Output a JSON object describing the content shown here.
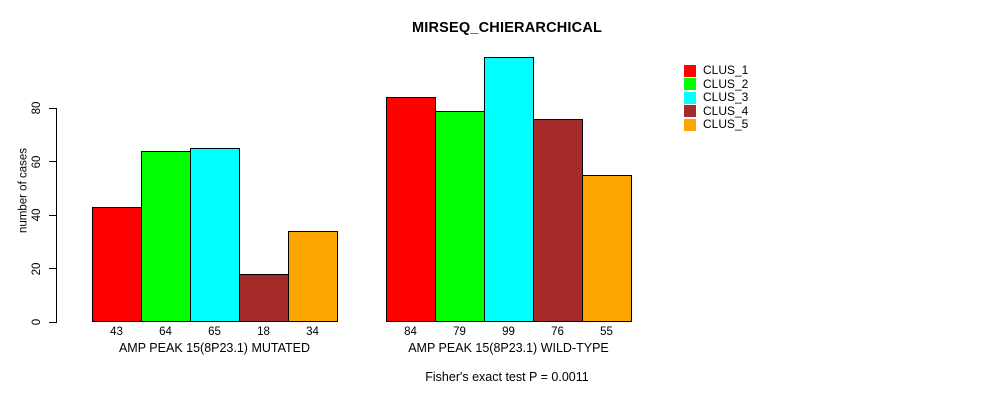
{
  "title": "MIRSEQ_CHIERARCHICAL",
  "footnote": "Fisher's exact test P = 0.0011",
  "chart_data": {
    "type": "bar",
    "grouped": true,
    "title": "MIRSEQ_CHIERARCHICAL",
    "subtitle": "Fisher's exact test P = 0.0011",
    "categories": [
      "AMP PEAK 15(8P23.1) MUTATED",
      "AMP PEAK 15(8P23.1) WILD-TYPE"
    ],
    "series": [
      {
        "name": "CLUS_1",
        "color": "#FF0000",
        "values": [
          43,
          84
        ]
      },
      {
        "name": "CLUS_2",
        "color": "#00FF00",
        "values": [
          64,
          79
        ]
      },
      {
        "name": "CLUS_3",
        "color": "#00FFFF",
        "values": [
          65,
          99
        ]
      },
      {
        "name": "CLUS_4",
        "color": "#A52A2A",
        "values": [
          18,
          76
        ]
      },
      {
        "name": "CLUS_5",
        "color": "#FFA500",
        "values": [
          34,
          55
        ]
      }
    ],
    "xlabel": "",
    "ylabel": "number of cases",
    "yticks": [
      0,
      20,
      40,
      60,
      80
    ],
    "ylim": [
      0,
      100
    ],
    "bar_value_labels_shown": true,
    "grid": false,
    "legend_position": "top-right"
  }
}
